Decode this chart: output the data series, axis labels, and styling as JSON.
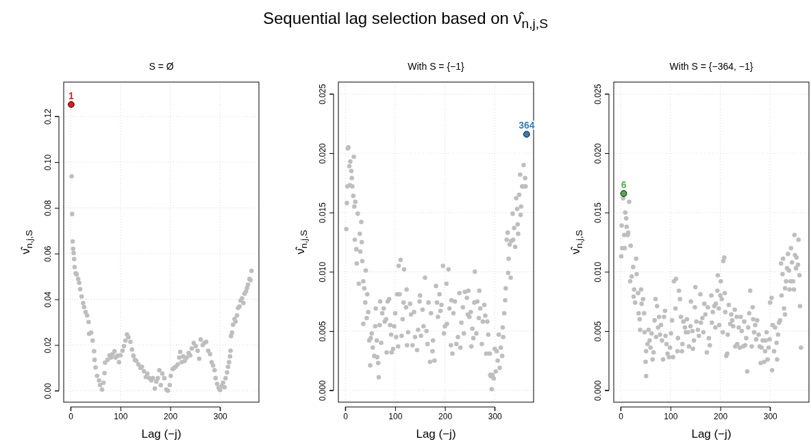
{
  "chart_data": [
    {
      "type": "scatter",
      "title": "S = Ø",
      "annotations": [
        "Sequential lag selection based on ν̂$_{n,j,S}$",
        {
          "text": "1",
          "x": 1,
          "y": 0.1252
        }
      ],
      "xlabel": "Lag (−j)",
      "ylabel": "ν̂$_{n,j,S}$",
      "xlim": [
        -14,
        378
      ],
      "xticks": [
        0,
        100,
        200,
        300
      ],
      "ylim": [
        -0.005,
        0.135
      ],
      "yticks": [
        {
          "value": 0,
          "label": "0.00"
        },
        {
          "value": 0.02,
          "label": "0.02"
        },
        {
          "value": 0.04,
          "label": "0.04"
        },
        {
          "value": 0.06,
          "label": "0.06"
        },
        {
          "value": 0.08,
          "label": "0.08"
        },
        {
          "value": 0.1,
          "label": "0.10"
        },
        {
          "value": 0.12,
          "label": "0.12"
        }
      ],
      "grid": true,
      "marker": "circle",
      "series": [
        {
          "color": "#bebebe",
          "x": [
            2,
            3,
            4,
            5,
            6,
            7,
            8,
            10,
            12,
            15,
            17,
            19,
            22,
            25,
            27,
            30,
            33,
            36,
            37,
            41,
            44,
            47,
            48,
            50,
            53,
            57,
            59,
            63,
            66,
            68,
            69,
            74,
            78,
            81,
            84,
            88,
            90,
            94,
            97,
            100,
            104,
            107,
            110,
            113,
            116,
            120,
            123,
            126,
            129,
            132,
            136,
            140,
            143,
            147,
            151,
            154,
            158,
            162,
            165,
            169,
            172,
            175,
            178,
            181,
            184,
            188,
            192,
            195,
            199,
            201,
            205,
            208,
            211,
            215,
            218,
            220,
            223,
            226,
            229,
            233,
            237,
            240,
            243,
            247,
            251,
            255,
            258,
            261,
            265,
            268,
            272,
            276,
            280,
            283,
            286,
            289,
            291,
            294,
            297,
            300,
            303,
            306,
            309,
            311,
            314,
            316,
            318,
            320,
            321,
            322,
            324,
            326,
            329,
            331,
            334,
            336,
            339,
            341,
            344,
            347,
            349,
            352,
            354,
            356,
            359,
            361,
            363
          ],
          "values": [
            0.0938,
            0.0773,
            0.0653,
            0.0621,
            0.0602,
            0.0576,
            0.0541,
            0.0514,
            0.0509,
            0.0489,
            0.0472,
            0.0444,
            0.0412,
            0.0384,
            0.0366,
            0.0344,
            0.0329,
            0.0301,
            0.0249,
            0.0254,
            0.0219,
            0.0173,
            0.0135,
            0.0102,
            0.0065,
            0.0045,
            0.0025,
            0.0005,
            0.0035,
            0.0077,
            0.0123,
            0.0135,
            0.0155,
            0.0145,
            0.016,
            0.0173,
            0.0145,
            0.0153,
            0.0125,
            0.0155,
            0.0175,
            0.0195,
            0.0219,
            0.0246,
            0.0234,
            0.0214,
            0.018,
            0.0153,
            0.0135,
            0.013,
            0.0115,
            0.01,
            0.0105,
            0.0085,
            0.006,
            0.0075,
            0.0055,
            0.0045,
            0.0055,
            0.001,
            0.004,
            0.0055,
            0.009,
            0.0025,
            0.0075,
            0.0055,
            0.0005,
            0.0,
            0.0025,
            0.0065,
            0.0095,
            0.01,
            0.0105,
            0.0115,
            0.0145,
            0.017,
            0.0125,
            0.015,
            0.013,
            0.0145,
            0.0165,
            0.0155,
            0.0185,
            0.0209,
            0.0195,
            0.0175,
            0.014,
            0.0224,
            0.02,
            0.0209,
            0.0214,
            0.0175,
            0.016,
            0.0125,
            0.011,
            0.009,
            0.0055,
            0.003,
            0.0013,
            0.0003,
            0.002,
            0.0035,
            0.0015,
            0.0055,
            0.008,
            0.0105,
            0.0125,
            0.015,
            0.0175,
            0.0239,
            0.0254,
            0.0289,
            0.0314,
            0.0302,
            0.0329,
            0.0362,
            0.0369,
            0.0394,
            0.0404,
            0.0384,
            0.0424,
            0.0434,
            0.0449,
            0.0464,
            0.0489,
            0.0484,
            0.0524
          ]
        },
        {
          "color": "#e41a1c",
          "x": [
            1
          ],
          "values": [
            0.1252
          ]
        }
      ]
    },
    {
      "type": "scatter",
      "title": "With S = {−1}",
      "annotations": [
        {
          "text": "364",
          "x": 364,
          "y": 0.0216
        }
      ],
      "xlabel": "Lag (−j)",
      "ylabel": "ν̂$_{n,j,S}$",
      "xlim": [
        -14,
        378
      ],
      "xticks": [
        0,
        100,
        200,
        300
      ],
      "ylim": [
        -0.001,
        0.026
      ],
      "yticks": [
        {
          "value": 0,
          "label": "0.000"
        },
        {
          "value": 0.005,
          "label": "0.005"
        },
        {
          "value": 0.01,
          "label": "0.010"
        },
        {
          "value": 0.015,
          "label": "0.015"
        },
        {
          "value": 0.02,
          "label": "0.020"
        },
        {
          "value": 0.025,
          "label": "0.025"
        }
      ],
      "grid": true,
      "marker": "circle",
      "series": [
        {
          "color": "#bebebe",
          "x": [
            2,
            3,
            4,
            5,
            6,
            8,
            9,
            10,
            12,
            13,
            14,
            16,
            17,
            18,
            19,
            20,
            22,
            23,
            25,
            27,
            29,
            30,
            32,
            33,
            34,
            36,
            36,
            38,
            40,
            41,
            43,
            44,
            46,
            48,
            50,
            51,
            53,
            55,
            58,
            60,
            61,
            63,
            64,
            66,
            67,
            69,
            70,
            72,
            74,
            77,
            79,
            82,
            83,
            85,
            88,
            90,
            92,
            93,
            96,
            98,
            100,
            102,
            104,
            106,
            107,
            109,
            111,
            113,
            115,
            117,
            118,
            122,
            123,
            124,
            126,
            130,
            132,
            135,
            138,
            140,
            144,
            146,
            149,
            150,
            152,
            155,
            157,
            160,
            163,
            165,
            167,
            170,
            172,
            175,
            176,
            179,
            182,
            184,
            186,
            189,
            191,
            193,
            196,
            198,
            200,
            203,
            204,
            207,
            209,
            212,
            213,
            215,
            217,
            220,
            223,
            226,
            229,
            231,
            233,
            236,
            238,
            240,
            244,
            246,
            247,
            249,
            252,
            253,
            255,
            257,
            259,
            260,
            263,
            265,
            268,
            269,
            271,
            274,
            276,
            279,
            281,
            283,
            285,
            287,
            290,
            291,
            292,
            294,
            295,
            298,
            300,
            302,
            304,
            306,
            308,
            310,
            312,
            315,
            316,
            317,
            319,
            321,
            322,
            324,
            326,
            327,
            328,
            330,
            332,
            333,
            336,
            337,
            339,
            341,
            343,
            345,
            346,
            347,
            349,
            351,
            352,
            353,
            355,
            357,
            358,
            361,
            362
          ],
          "values": [
            0.0136,
            0.0158,
            0.0172,
            0.0204,
            0.0205,
            0.0189,
            0.0173,
            0.0193,
            0.0185,
            0.0179,
            0.0172,
            0.0164,
            0.0197,
            0.0155,
            0.0127,
            0.0159,
            0.0119,
            0.0107,
            0.0149,
            0.009,
            0.0132,
            0.0117,
            0.0142,
            0.0125,
            0.0109,
            0.0092,
            0.0056,
            0.0086,
            0.0074,
            0.0101,
            0.0061,
            0.0081,
            0.0066,
            0.0042,
            0.0021,
            0.0044,
            0.0048,
            0.0036,
            0.0029,
            0.0054,
            0.0069,
            0.0042,
            0.0028,
            0.0023,
            0.0011,
            0.0055,
            0.0075,
            0.004,
            0.0065,
            0.0069,
            0.0058,
            0.006,
            0.0032,
            0.0075,
            0.0077,
            0.0055,
            0.0047,
            0.0032,
            0.0035,
            0.0054,
            0.0065,
            0.0045,
            0.0081,
            0.0037,
            0.0105,
            0.0081,
            0.011,
            0.0046,
            0.006,
            0.0074,
            0.0102,
            0.007,
            0.0085,
            0.0038,
            0.0049,
            0.0073,
            0.0064,
            0.0038,
            0.0066,
            0.0045,
            0.0034,
            0.0051,
            0.0075,
            0.008,
            0.0046,
            0.0068,
            0.0054,
            0.0095,
            0.005,
            0.0039,
            0.0074,
            0.0024,
            0.0065,
            0.0033,
            0.0042,
            0.0025,
            0.0088,
            0.0074,
            0.0062,
            0.0081,
            0.0067,
            0.0072,
            0.0105,
            0.0048,
            0.0054,
            0.009,
            0.0056,
            0.0102,
            0.0069,
            0.0038,
            0.0076,
            0.0031,
            0.0065,
            0.0075,
            0.0039,
            0.0045,
            0.0082,
            0.0036,
            0.0057,
            0.007,
            0.0048,
            0.0083,
            0.0078,
            0.0064,
            0.0084,
            0.0062,
            0.0066,
            0.0037,
            0.0052,
            0.0044,
            0.0074,
            0.01,
            0.0048,
            0.0075,
            0.0061,
            0.0084,
            0.0069,
            0.0039,
            0.0058,
            0.0072,
            0.0063,
            0.0031,
            0.0058,
            0.0047,
            0.0031,
            0.0013,
            0.0012,
            0.0001,
            0.0013,
            0.001,
            0.0035,
            0.0016,
            0.0033,
            0.0025,
            0.0047,
            0.0019,
            0.0036,
            0.0029,
            0.0053,
            0.0045,
            0.0065,
            0.0076,
            0.0086,
            0.0127,
            0.0133,
            0.0099,
            0.0111,
            0.0123,
            0.0095,
            0.0126,
            0.0149,
            0.0127,
            0.0137,
            0.0121,
            0.0162,
            0.0153,
            0.014,
            0.0132,
            0.0165,
            0.0182,
            0.0148,
            0.0155,
            0.0172,
            0.0172,
            0.019,
            0.0179,
            0.0172
          ]
        },
        {
          "color": "#377eb8",
          "x": [
            364
          ],
          "values": [
            0.0216
          ]
        }
      ]
    },
    {
      "type": "scatter",
      "title": "With S = {−364, −1}",
      "annotations": [
        {
          "text": "6",
          "x": 6,
          "y": 0.0166
        }
      ],
      "xlabel": "Lag (−j)",
      "ylabel": "ν̂$_{n,j,S}$",
      "xlim": [
        -14,
        378
      ],
      "xticks": [
        0,
        100,
        200,
        300
      ],
      "ylim": [
        -0.001,
        0.026
      ],
      "yticks": [
        {
          "value": 0,
          "label": "0.000"
        },
        {
          "value": 0.005,
          "label": "0.005"
        },
        {
          "value": 0.01,
          "label": "0.010"
        },
        {
          "value": 0.015,
          "label": "0.015"
        },
        {
          "value": 0.02,
          "label": "0.020"
        },
        {
          "value": 0.025,
          "label": "0.025"
        }
      ],
      "grid": true,
      "marker": "circle",
      "series": [
        {
          "color": "#bebebe",
          "x": [
            1,
            2,
            3,
            5,
            7,
            8,
            9,
            11,
            12,
            14,
            15,
            17,
            19,
            20,
            22,
            25,
            26,
            27,
            29,
            31,
            32,
            35,
            36,
            38,
            39,
            41,
            42,
            45,
            47,
            48,
            50,
            51,
            51,
            54,
            56,
            58,
            60,
            62,
            64,
            66,
            68,
            70,
            71,
            73,
            75,
            77,
            79,
            81,
            83,
            85,
            87,
            89,
            90,
            92,
            94,
            97,
            99,
            101,
            103,
            105,
            107,
            110,
            111,
            114,
            115,
            117,
            119,
            121,
            123,
            124,
            126,
            129,
            131,
            133,
            135,
            137,
            140,
            141,
            144,
            145,
            147,
            149,
            150,
            152,
            155,
            157,
            160,
            161,
            164,
            166,
            168,
            170,
            173,
            175,
            177,
            179,
            182,
            183,
            185,
            188,
            190,
            191,
            194,
            195,
            197,
            198,
            200,
            201,
            203,
            205,
            206,
            208,
            209,
            210,
            212,
            214,
            215,
            217,
            220,
            222,
            224,
            226,
            229,
            230,
            233,
            234,
            237,
            239,
            241,
            243,
            246,
            248,
            250,
            252,
            254,
            256,
            258,
            260,
            263,
            265,
            266,
            268,
            270,
            272,
            274,
            277,
            279,
            281,
            283,
            285,
            288,
            290,
            291,
            293,
            295,
            297,
            299,
            300,
            303,
            304,
            305,
            308,
            310,
            313,
            314,
            316,
            318,
            320,
            322,
            323,
            325,
            326,
            328,
            330,
            330,
            332,
            334,
            336,
            338,
            339,
            341,
            342,
            344,
            346,
            348,
            349,
            350,
            352,
            353,
            356,
            357,
            359,
            360,
            362
          ],
          "values": [
            0.0113,
            0.0139,
            0.012,
            0.0162,
            0.0131,
            0.012,
            0.015,
            0.0145,
            0.0138,
            0.0131,
            0.0133,
            0.0159,
            0.0092,
            0.0122,
            0.0096,
            0.0104,
            0.0079,
            0.0085,
            0.0074,
            0.0111,
            0.0098,
            0.0082,
            0.0065,
            0.006,
            0.0051,
            0.0085,
            0.0073,
            0.0077,
            0.0065,
            0.0049,
            0.0024,
            0.0012,
            0.0033,
            0.0039,
            0.0051,
            0.0042,
            0.0036,
            0.0048,
            0.0026,
            0.0032,
            0.0059,
            0.0077,
            0.0045,
            0.0071,
            0.0053,
            0.0062,
            0.0047,
            0.0055,
            0.0042,
            0.0026,
            0.0062,
            0.0067,
            0.0046,
            0.0039,
            0.0031,
            0.0028,
            0.0036,
            0.0048,
            0.0059,
            0.0028,
            0.0092,
            0.0069,
            0.0094,
            0.0033,
            0.0044,
            0.0084,
            0.0077,
            0.0062,
            0.0033,
            0.0039,
            0.0058,
            0.0053,
            0.0049,
            0.006,
            0.0049,
            0.0037,
            0.0054,
            0.0075,
            0.005,
            0.0035,
            0.0042,
            0.007,
            0.0087,
            0.0058,
            0.0051,
            0.0046,
            0.0081,
            0.0057,
            0.0061,
            0.0049,
            0.0073,
            0.0064,
            0.0032,
            0.007,
            0.0044,
            0.0038,
            0.008,
            0.0057,
            0.0066,
            0.0071,
            0.0053,
            0.0073,
            0.0084,
            0.0097,
            0.0069,
            0.0055,
            0.008,
            0.0092,
            0.0077,
            0.0049,
            0.0109,
            0.0112,
            0.0082,
            0.0066,
            0.0029,
            0.0031,
            0.0047,
            0.0072,
            0.0056,
            0.0064,
            0.0059,
            0.0054,
            0.0068,
            0.0037,
            0.0062,
            0.0039,
            0.0053,
            0.0036,
            0.0062,
            0.005,
            0.0037,
            0.0058,
            0.0038,
            0.0044,
            0.0016,
            0.0053,
            0.0065,
            0.0084,
            0.0037,
            0.007,
            0.006,
            0.0049,
            0.0055,
            0.0043,
            0.0059,
            0.0047,
            0.0037,
            0.0023,
            0.0036,
            0.0042,
            0.0024,
            0.0033,
            0.0042,
            0.0049,
            0.0026,
            0.0036,
            0.0043,
            0.0074,
            0.0078,
            0.0017,
            0.0055,
            0.0033,
            0.0053,
            0.004,
            0.0026,
            0.0047,
            0.0057,
            0.0059,
            0.0107,
            0.008,
            0.0098,
            0.0111,
            0.0069,
            0.0064,
            0.0086,
            0.0092,
            0.0103,
            0.0115,
            0.0101,
            0.0085,
            0.0092,
            0.012,
            0.0108,
            0.0092,
            0.0085,
            0.0131,
            0.0114,
            0.0103,
            0.0112,
            0.0106,
            0.0127,
            0.0097,
            0.0071,
            0.0036
          ]
        },
        {
          "color": "#4daf4a",
          "x": [
            6
          ],
          "values": [
            0.0166
          ]
        }
      ]
    }
  ]
}
